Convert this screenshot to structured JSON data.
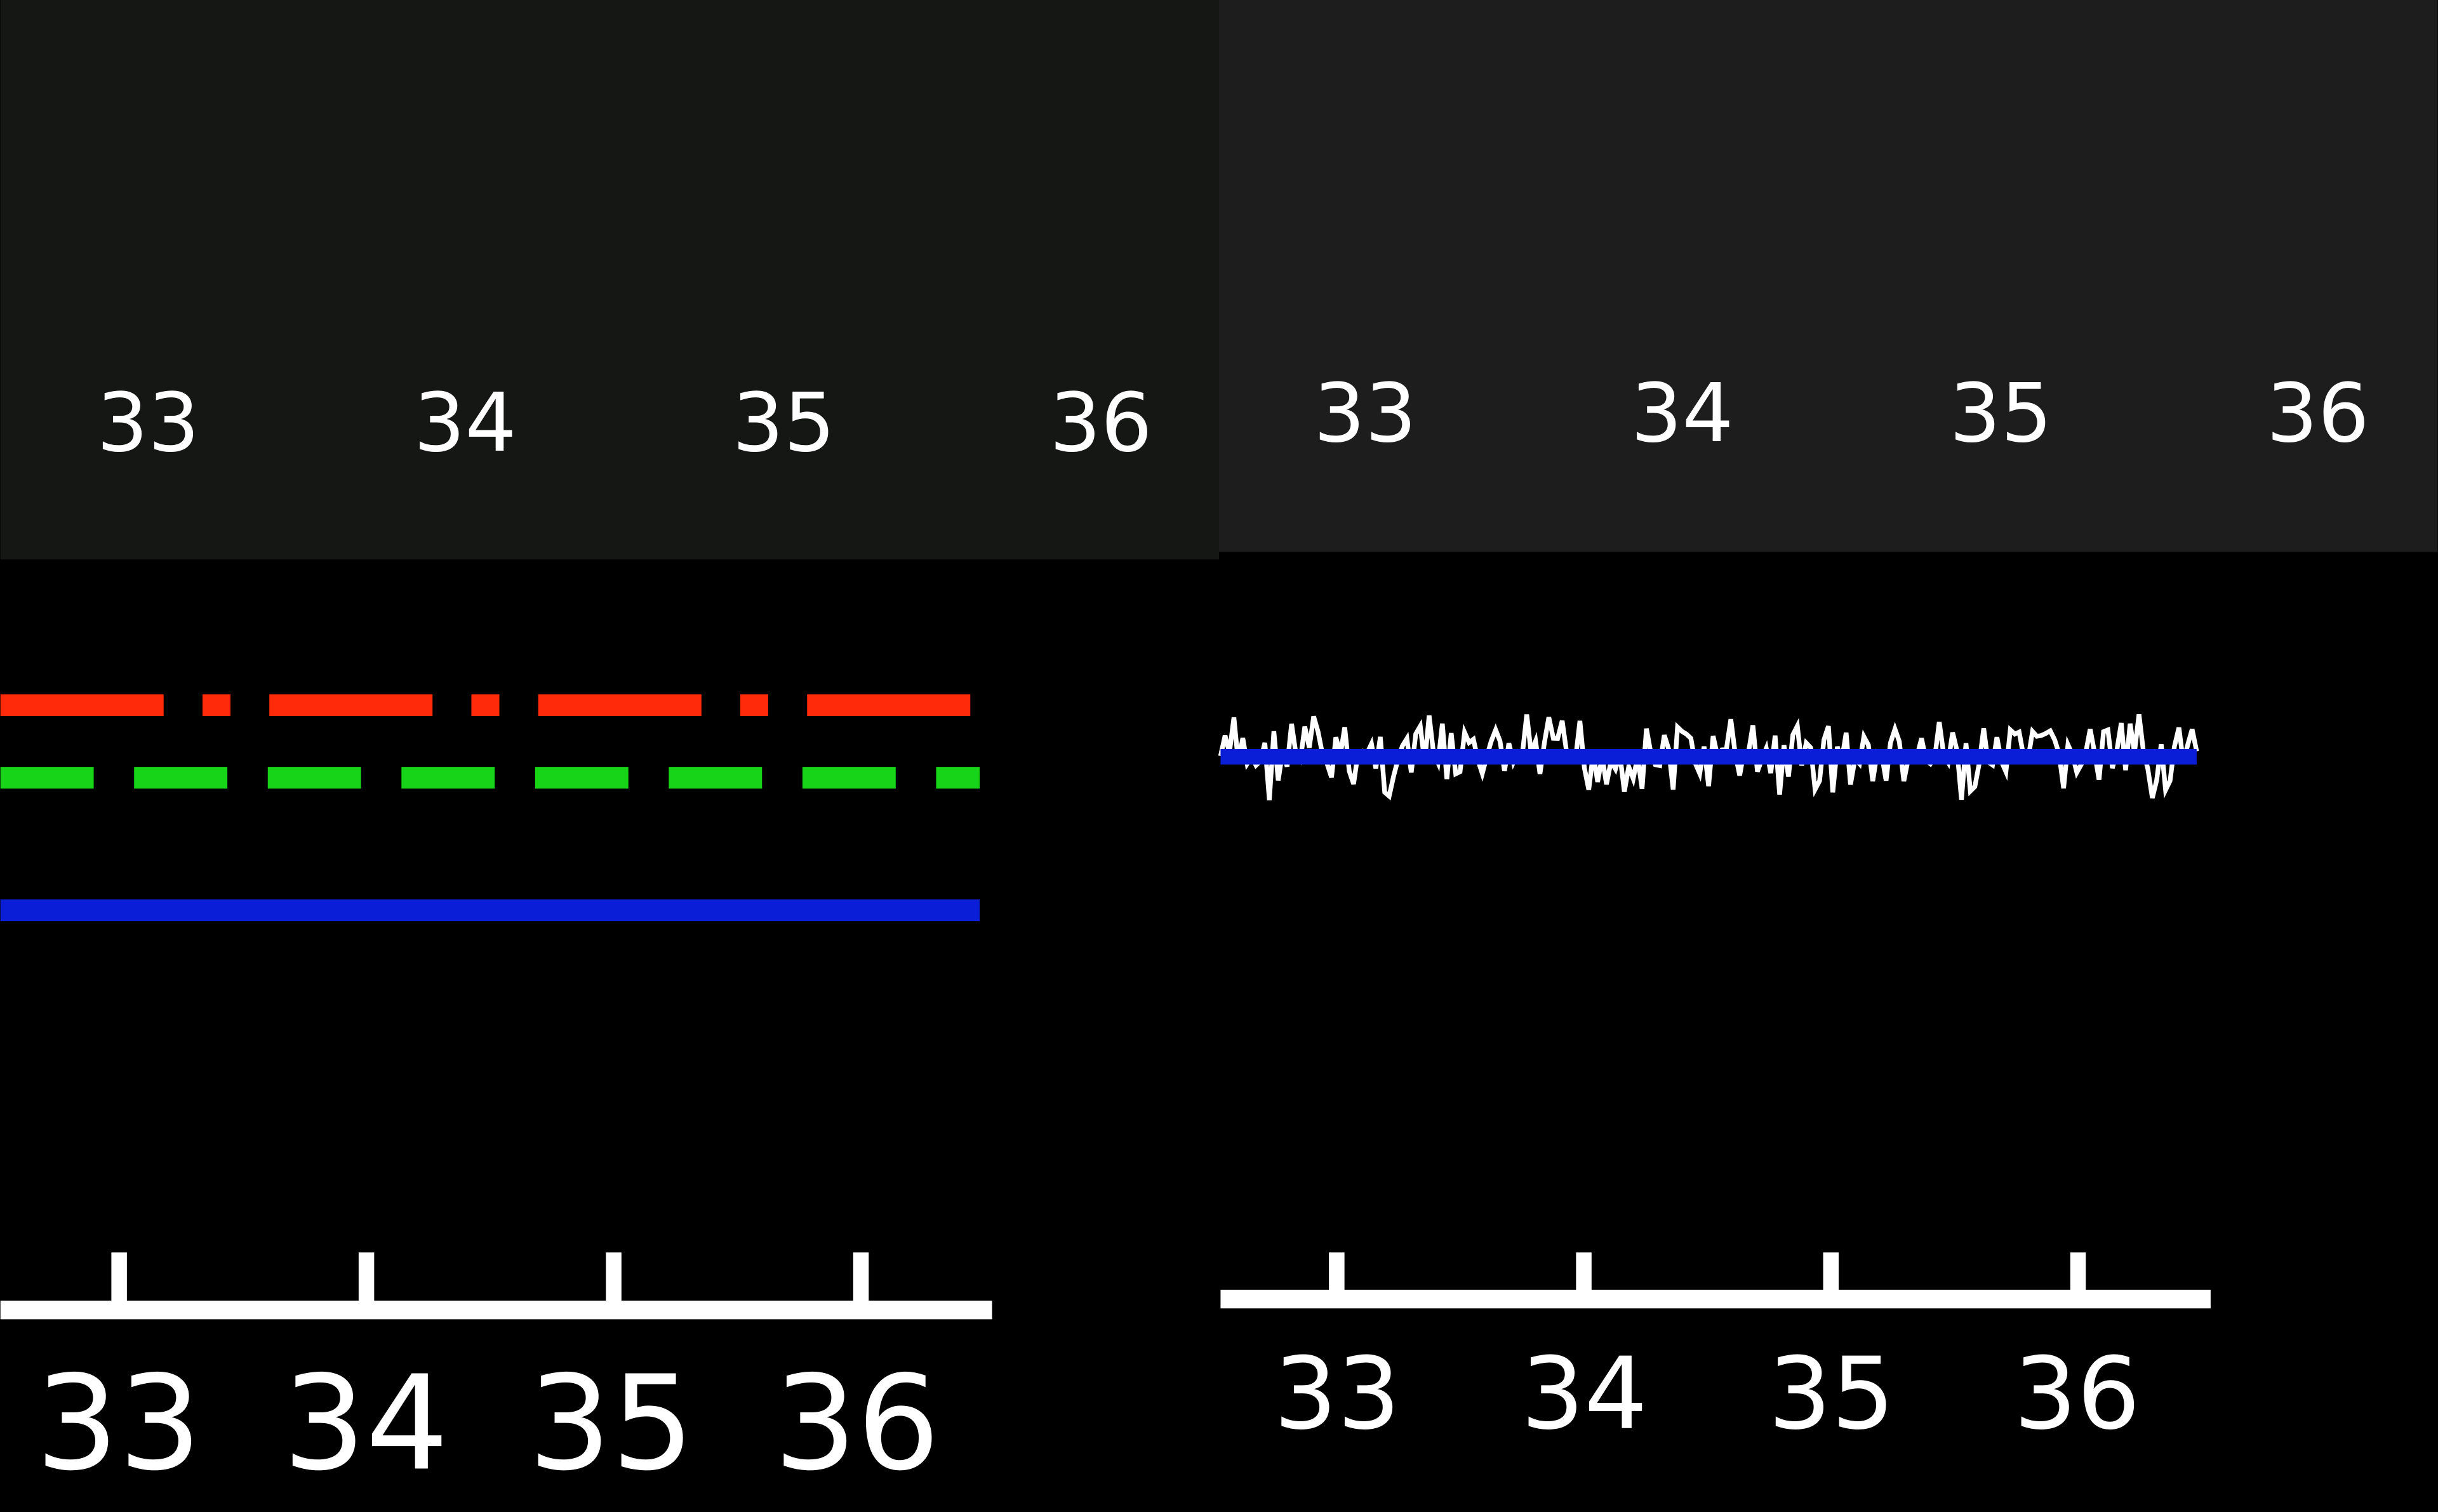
{
  "chart_data": [
    {
      "type": "line",
      "panel": "left",
      "top_tick_labels": [
        "33",
        "34",
        "35",
        "36"
      ],
      "x": {
        "ticks": [
          33,
          34,
          35,
          36
        ],
        "tick_labels": [
          "33",
          "34",
          "35",
          "36"
        ],
        "range": [
          32.52,
          36.48
        ]
      },
      "ylim": [
        -1,
        1
      ],
      "grid": false,
      "series": [
        {
          "style": "dash-dot",
          "color": "#ff2a0a",
          "y": 0.55
        },
        {
          "style": "dashed",
          "color": "#18d418",
          "y": 0.38
        },
        {
          "style": "solid",
          "color": "#0a1ed8",
          "y": 0.07
        }
      ]
    },
    {
      "type": "line",
      "panel": "right",
      "top_tick_labels": [
        "33",
        "34",
        "35",
        "36"
      ],
      "x": {
        "ticks": [
          33,
          34,
          35,
          36
        ],
        "tick_labels": [
          "33",
          "34",
          "35",
          "36"
        ],
        "range": [
          32.53,
          36.48
        ]
      },
      "ylim": [
        -1,
        1
      ],
      "grid": false,
      "series": [
        {
          "style": "noisy",
          "color": "#ffffff",
          "y": 0.5,
          "noise_amplitude": 0.12
        },
        {
          "style": "solid",
          "color": "#0a1ed8",
          "y": 0.5
        }
      ]
    }
  ],
  "colors": {
    "top_left_bg": "#151715",
    "top_right_bg": "#1c1d1c",
    "plot_bg": "#000000",
    "axis": "#ffffff"
  }
}
